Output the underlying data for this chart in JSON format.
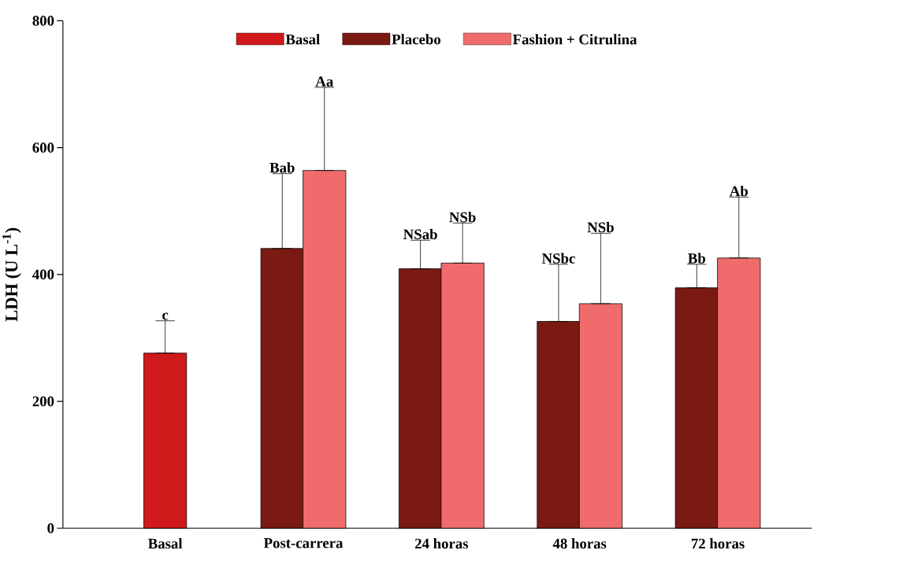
{
  "chart_data": {
    "type": "bar",
    "ylabel": "LDH (U L$^{-1}$)",
    "categories": [
      "Basal",
      "Post-carrera",
      "24 horas",
      "48 horas",
      "72 horas"
    ],
    "series": [
      {
        "name": "Basal",
        "color": "#d0191b",
        "values": [
          276,
          null,
          null,
          null,
          null
        ],
        "errors": [
          [
            276,
            327
          ],
          null,
          null,
          null,
          null
        ]
      },
      {
        "name": "Placebo",
        "color": "#7a1a12",
        "values": [
          null,
          441,
          409,
          326,
          379
        ],
        "errors": [
          null,
          [
            441,
            559
          ],
          [
            409,
            454
          ],
          [
            326,
            416
          ],
          [
            379,
            416
          ]
        ]
      },
      {
        "name": "Fashion + Citrulina",
        "color": "#f06b6b",
        "values": [
          null,
          564,
          418,
          354,
          426
        ],
        "errors": [
          null,
          [
            564,
            695
          ],
          [
            418,
            481
          ],
          [
            354,
            465
          ],
          [
            426,
            522
          ]
        ]
      }
    ],
    "annotations": [
      "c",
      "Bab",
      "Aa",
      "NSab",
      "NSb",
      "NSbc",
      "NSb",
      "Bb",
      "Ab"
    ],
    "ylim": [
      0,
      800
    ],
    "yticks": [
      0,
      200,
      400,
      600,
      800
    ],
    "legend": "top",
    "grid": false
  }
}
